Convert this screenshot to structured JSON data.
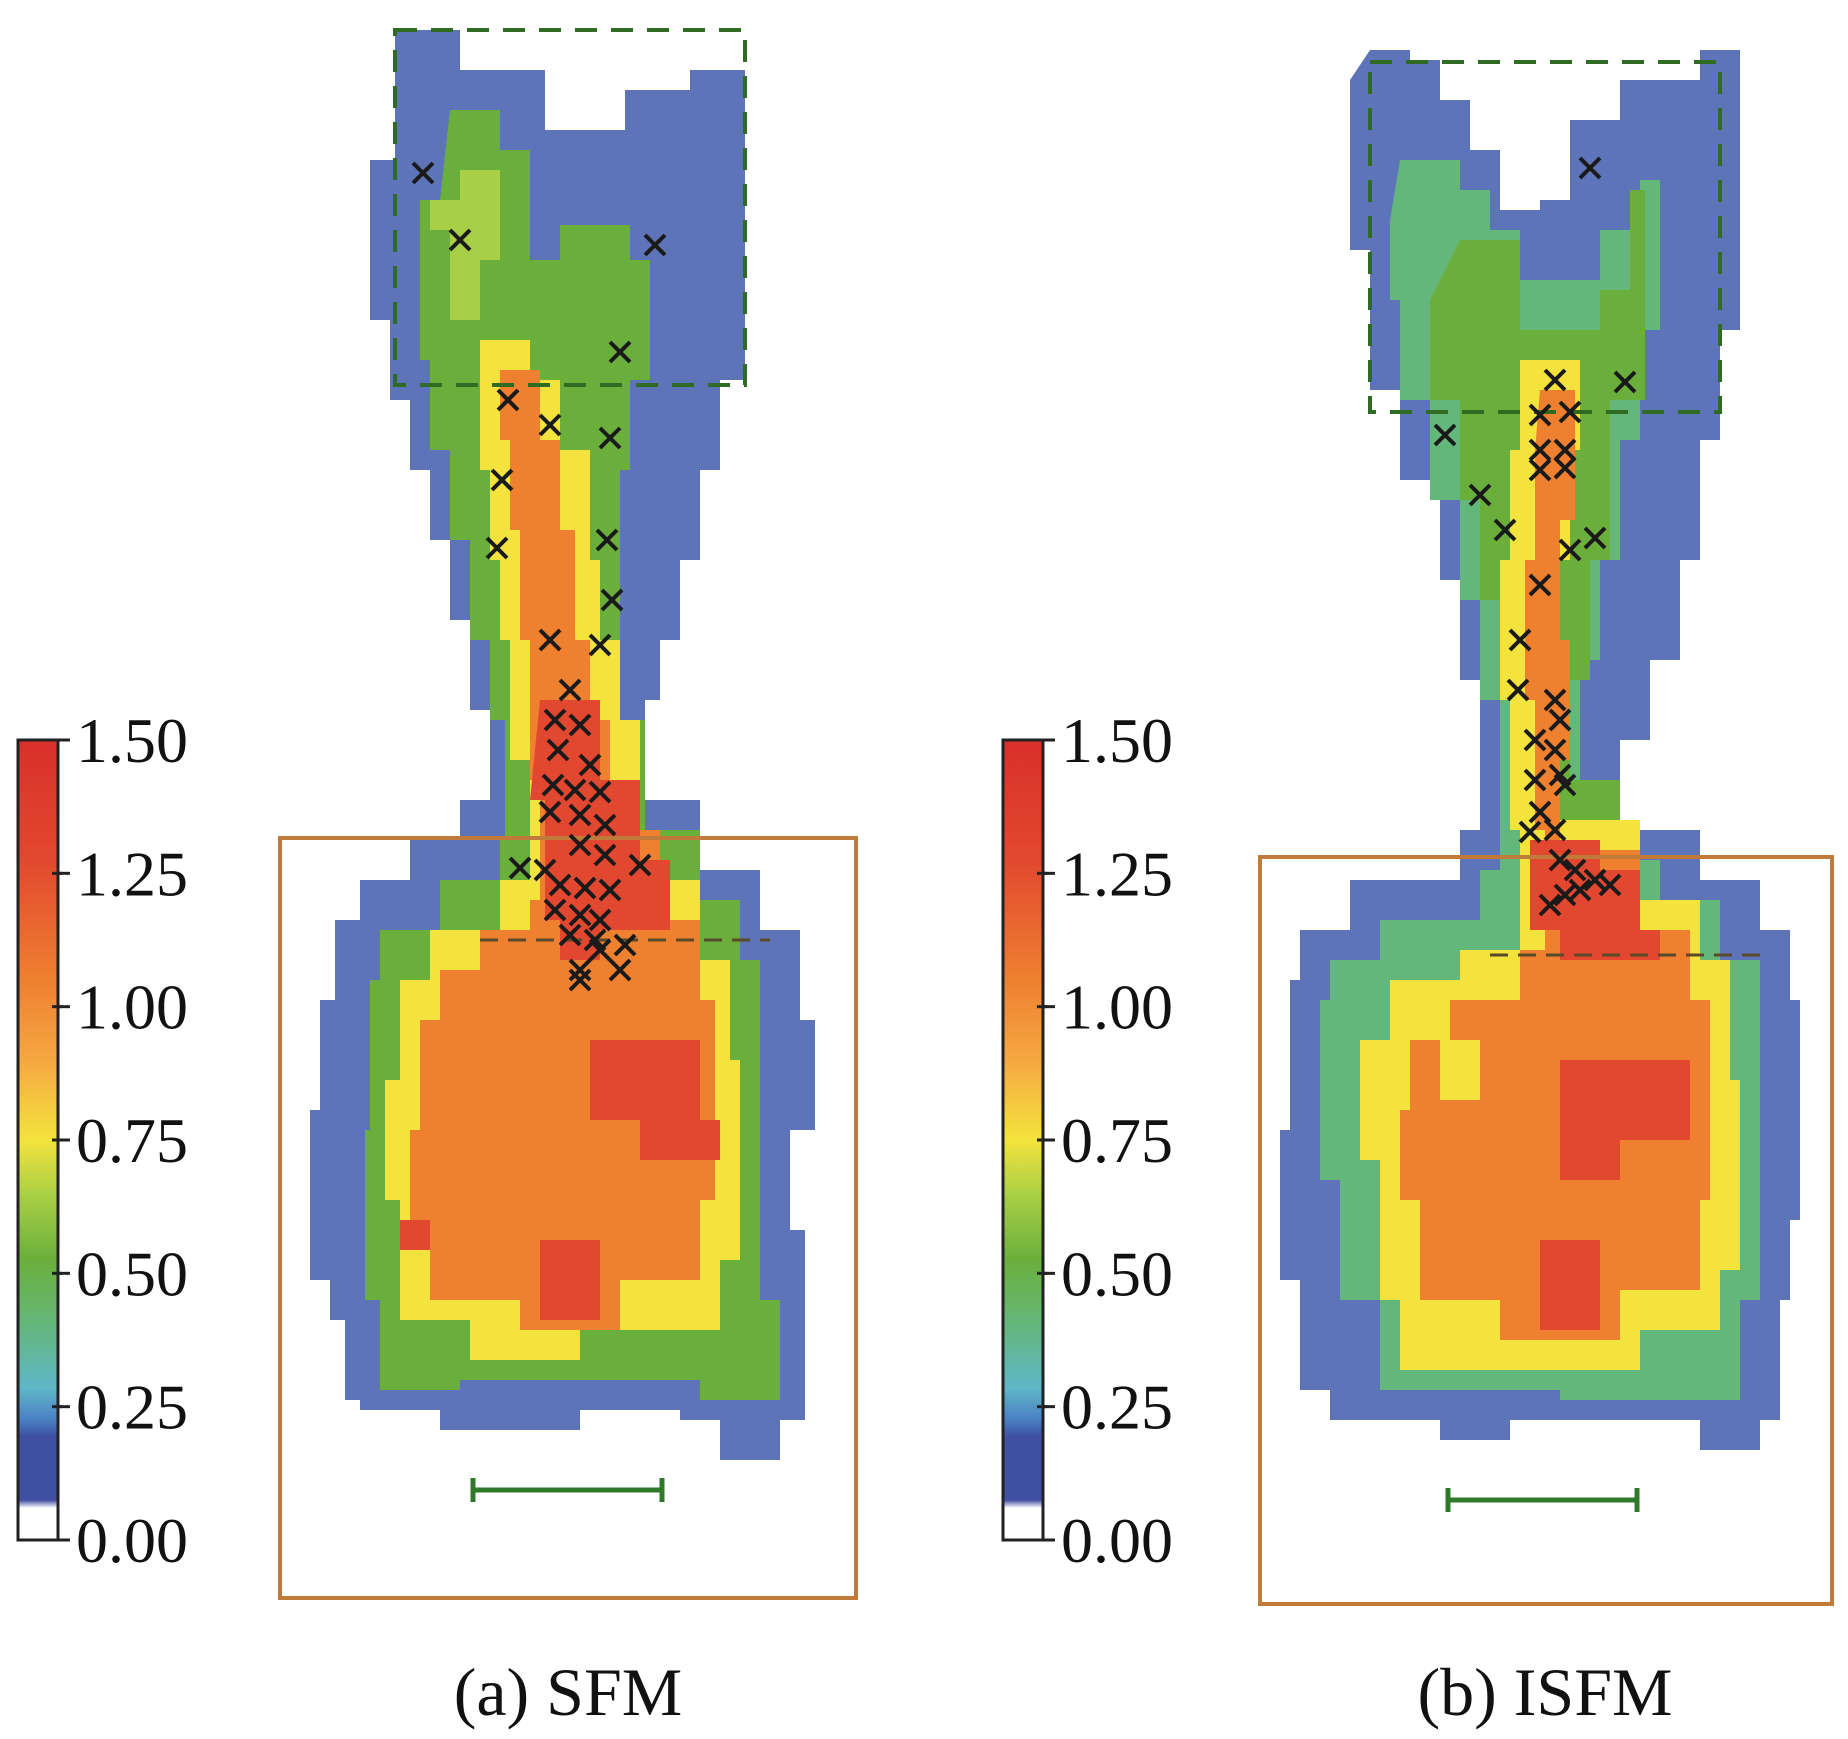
{
  "chart_data": [
    {
      "type": "heatmap",
      "caption": "(a) SFM",
      "colorbar": {
        "min": 0.0,
        "max": 1.5,
        "ticks": [
          "0.00",
          "0.25",
          "0.50",
          "0.75",
          "1.00",
          "1.25",
          "1.50"
        ],
        "tick_values": [
          0.0,
          0.25,
          0.5,
          0.75,
          1.0,
          1.25,
          1.5
        ]
      },
      "grid": false,
      "legend": "none"
    },
    {
      "type": "heatmap",
      "caption": "(b) ISFM",
      "colorbar": {
        "min": 0.0,
        "max": 1.5,
        "ticks": [
          "0.00",
          "0.25",
          "0.50",
          "0.75",
          "1.00",
          "1.25",
          "1.50"
        ],
        "tick_values": [
          0.0,
          0.25,
          0.5,
          0.75,
          1.0,
          1.25,
          1.5
        ]
      },
      "grid": false,
      "legend": "none"
    }
  ],
  "colors": {
    "0.00": "#ffffff",
    "0.10": "#3f4fa1",
    "0.20": "#4a7fc4",
    "0.25": "#5fb7c8",
    "0.35": "#64b77a",
    "0.50": "#6aaf3c",
    "0.62": "#a8cf45",
    "0.75": "#f4e33c",
    "0.88": "#f5a742",
    "1.00": "#ee8030",
    "1.25": "#e2482f",
    "1.50": "#d9302a",
    "blue_region": "#5d74b8",
    "frame_brown": "#c07a3a",
    "dash_green": "#2f6b22",
    "scale_bar_green": "#2e7a2a"
  },
  "markers_label": "pedestrian markers (x)"
}
